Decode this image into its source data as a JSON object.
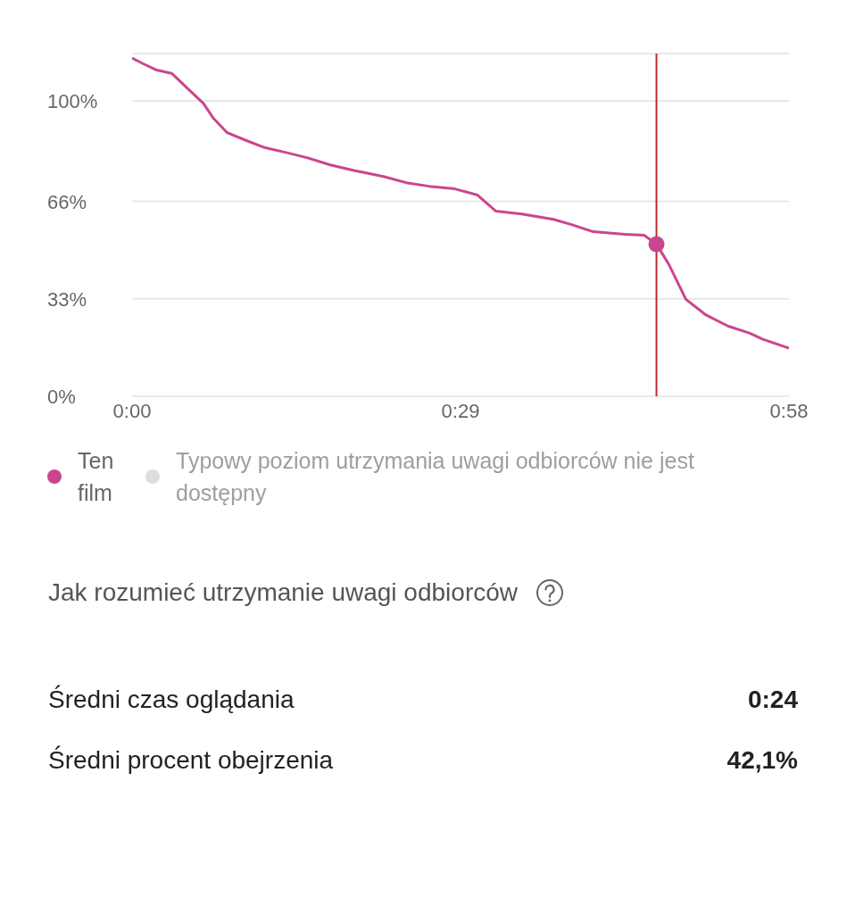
{
  "chart_data": {
    "type": "line",
    "xlim": [
      0,
      58
    ],
    "xticks": [
      {
        "value": 0,
        "label": "0:00"
      },
      {
        "value": 29,
        "label": "0:29"
      },
      {
        "value": 58,
        "label": "0:58"
      }
    ],
    "ylim": [
      0,
      116
    ],
    "yticks": [
      {
        "value": 0,
        "label": "0%"
      },
      {
        "value": 33,
        "label": "33%"
      },
      {
        "value": 66,
        "label": "66%"
      },
      {
        "value": 100,
        "label": "100%"
      }
    ],
    "grid": "y",
    "legend": "bottom",
    "series": [
      {
        "name": "Ten film",
        "color": "#c9468f",
        "marker": "none",
        "x": [
          0,
          0.95,
          2.1,
          3.5,
          4.9,
          6.3,
          7.2,
          8.4,
          10,
          11.6,
          13.6,
          15.5,
          17.5,
          19.5,
          22.2,
          24.2,
          26.2,
          28.5,
          30.5,
          32.1,
          34.4,
          37.2,
          38.8,
          40.7,
          43.5,
          45.2,
          46.3,
          47.4,
          48.9,
          50.6,
          52.6,
          54.5,
          55.7,
          58
        ],
        "values": [
          114.5,
          112.6,
          110.5,
          109.3,
          104.2,
          99.1,
          94,
          89.2,
          86.7,
          84.3,
          82.5,
          80.7,
          78.3,
          76.5,
          74.4,
          72.3,
          71.1,
          70.2,
          68.1,
          62.7,
          61.7,
          59.9,
          58.1,
          55.7,
          54.8,
          54.5,
          51.5,
          44.6,
          32.8,
          27.7,
          23.8,
          21.4,
          19.3,
          16.3
        ]
      },
      {
        "name": "Typowy poziom utrzymania uwagi odbiorców nie jest dostępny",
        "type": "line",
        "color": "#dddddd",
        "marker": "none"
      },
      {
        "type": "scatter",
        "color": "#c9468f",
        "marker": "circle",
        "x": [
          46.3
        ],
        "values": [
          51.5
        ]
      }
    ],
    "ref_lines": [
      {
        "axis": "x",
        "value": 46.3,
        "color": "#c0282d",
        "line_style": "solid"
      }
    ],
    "annotations": [
      "Jak rozumieć utrzymanie uwagi odbiorców",
      "Średni czas oglądania",
      "0:24",
      "Średni procent obejrzenia",
      "42,1%"
    ]
  }
}
